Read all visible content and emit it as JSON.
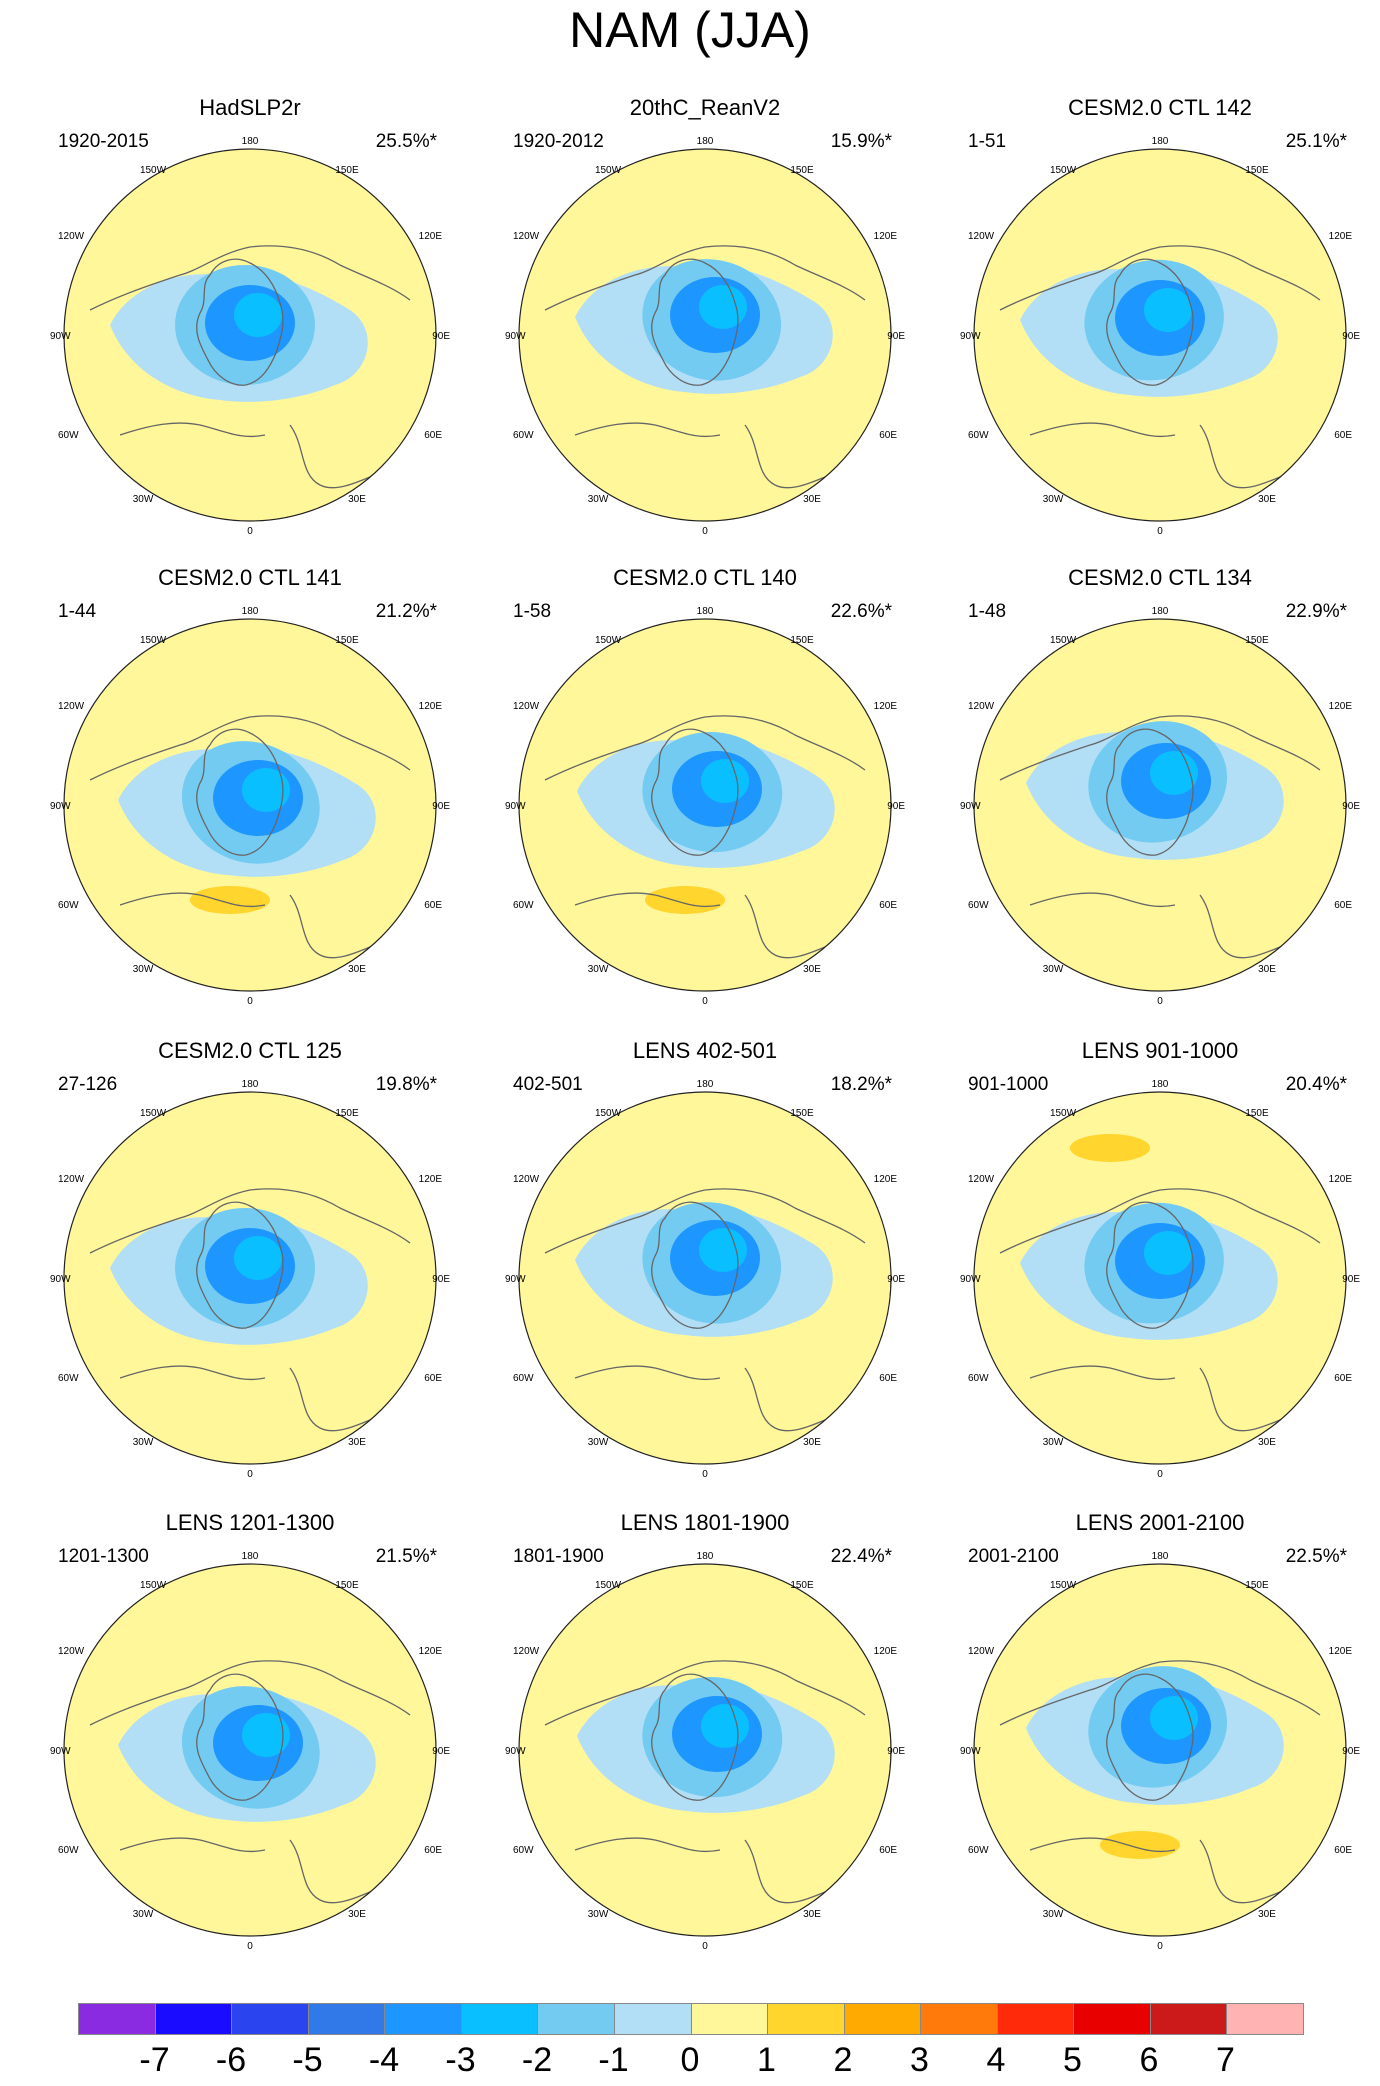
{
  "title": "NAM (JJA)",
  "panels": [
    {
      "title": "HadSLP2r",
      "period": "1920-2015",
      "pct": "25.5%*"
    },
    {
      "title": "20thC_ReanV2",
      "period": "1920-2012",
      "pct": "15.9%*"
    },
    {
      "title": "CESM2.0 CTL 142",
      "period": "1-51",
      "pct": "25.1%*"
    },
    {
      "title": "CESM2.0 CTL 141",
      "period": "1-44",
      "pct": "21.2%*"
    },
    {
      "title": "CESM2.0 CTL 140",
      "period": "1-58",
      "pct": "22.6%*"
    },
    {
      "title": "CESM2.0 CTL 134",
      "period": "1-48",
      "pct": "22.9%*"
    },
    {
      "title": "CESM2.0 CTL 125",
      "period": "27-126",
      "pct": "19.8%*"
    },
    {
      "title": "LENS 402-501",
      "period": "402-501",
      "pct": "18.2%*"
    },
    {
      "title": "LENS 901-1000",
      "period": "901-1000",
      "pct": "20.4%*"
    },
    {
      "title": "LENS 1201-1300",
      "period": "1201-1300",
      "pct": "21.5%*"
    },
    {
      "title": "LENS 1801-1900",
      "period": "1801-1900",
      "pct": "22.4%*"
    },
    {
      "title": "LENS 2001-2100",
      "period": "2001-2100",
      "pct": "22.5%*"
    }
  ],
  "longitude_labels": {
    "top": "180",
    "bottom": "0",
    "left_90": "90W",
    "right_90": "90E",
    "w150": "150W",
    "e150": "150E",
    "w120": "120W",
    "e120": "120E",
    "w60": "60W",
    "e60": "60E",
    "w30": "30W",
    "e30": "30E"
  },
  "colorbar": {
    "colors": [
      "#8a2be2",
      "#1a0dff",
      "#2a45f0",
      "#3178e8",
      "#1e96ff",
      "#0abfff",
      "#74cbf2",
      "#b2dff5",
      "#fff79a",
      "#ffd52e",
      "#ffaa00",
      "#ff7a0a",
      "#ff2a0a",
      "#e80000",
      "#cc1a1a",
      "#ffb3b3"
    ],
    "labels": [
      "-7",
      "-6",
      "-5",
      "-4",
      "-3",
      "-2",
      "-1",
      "0",
      "1",
      "2",
      "3",
      "4",
      "5",
      "6",
      "7"
    ]
  },
  "map_colors": {
    "positive": "#fff79a",
    "neg1": "#b2dff5",
    "neg2": "#74cbf2",
    "neg3": "#0abfff",
    "neg4": "#1e96ff",
    "pos2": "#ffd52e"
  }
}
